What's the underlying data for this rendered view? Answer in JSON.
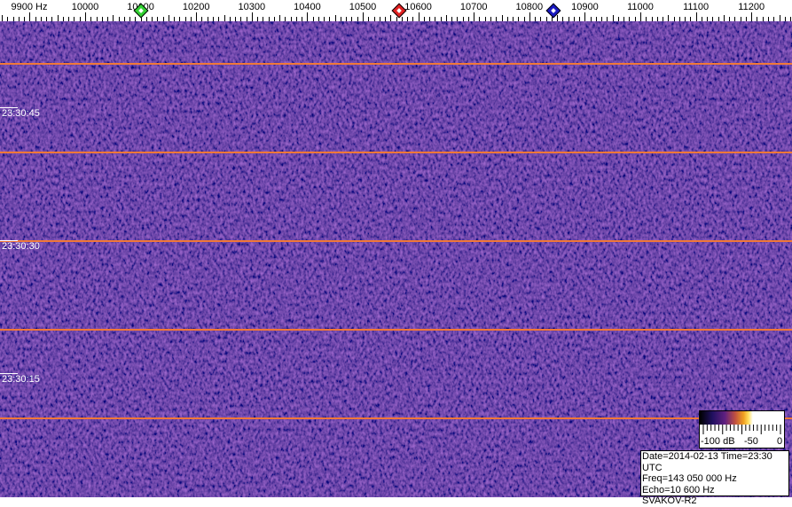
{
  "frequency_axis": {
    "unit_label": "9900 Hz",
    "labels": [
      "10000",
      "10100",
      "10200",
      "10300",
      "10400",
      "10500",
      "10600",
      "10700",
      "10800",
      "10900",
      "11000",
      "11100",
      "11200"
    ],
    "start_hz": 9900,
    "end_hz": 11200
  },
  "markers": [
    {
      "name": "green-marker",
      "freq_hz": 10100,
      "color": "#30d030"
    },
    {
      "name": "red-marker",
      "freq_hz": 10565,
      "color": "#e02020"
    },
    {
      "name": "blue-marker",
      "freq_hz": 10843,
      "color": "#1818c0"
    }
  ],
  "time_labels": [
    "23:30:45",
    "23:30:30",
    "23:30:15"
  ],
  "colors": {
    "background": "#2c1878",
    "second_lines": "#f07838"
  },
  "colorbar": {
    "labels": [
      "-100 dB",
      "-50",
      "0"
    ],
    "gradient": [
      "#000000",
      "#201060",
      "#602080",
      "#c05040",
      "#f0a020",
      "#ffe060",
      "#ffffff"
    ]
  },
  "info": {
    "date_time": "Date=2014-02-13 Time=23:30 UTC",
    "freq": "Freq=143 050 000 Hz",
    "echo": "Echo=10 600 Hz",
    "station": "SVAKOV-R2"
  }
}
